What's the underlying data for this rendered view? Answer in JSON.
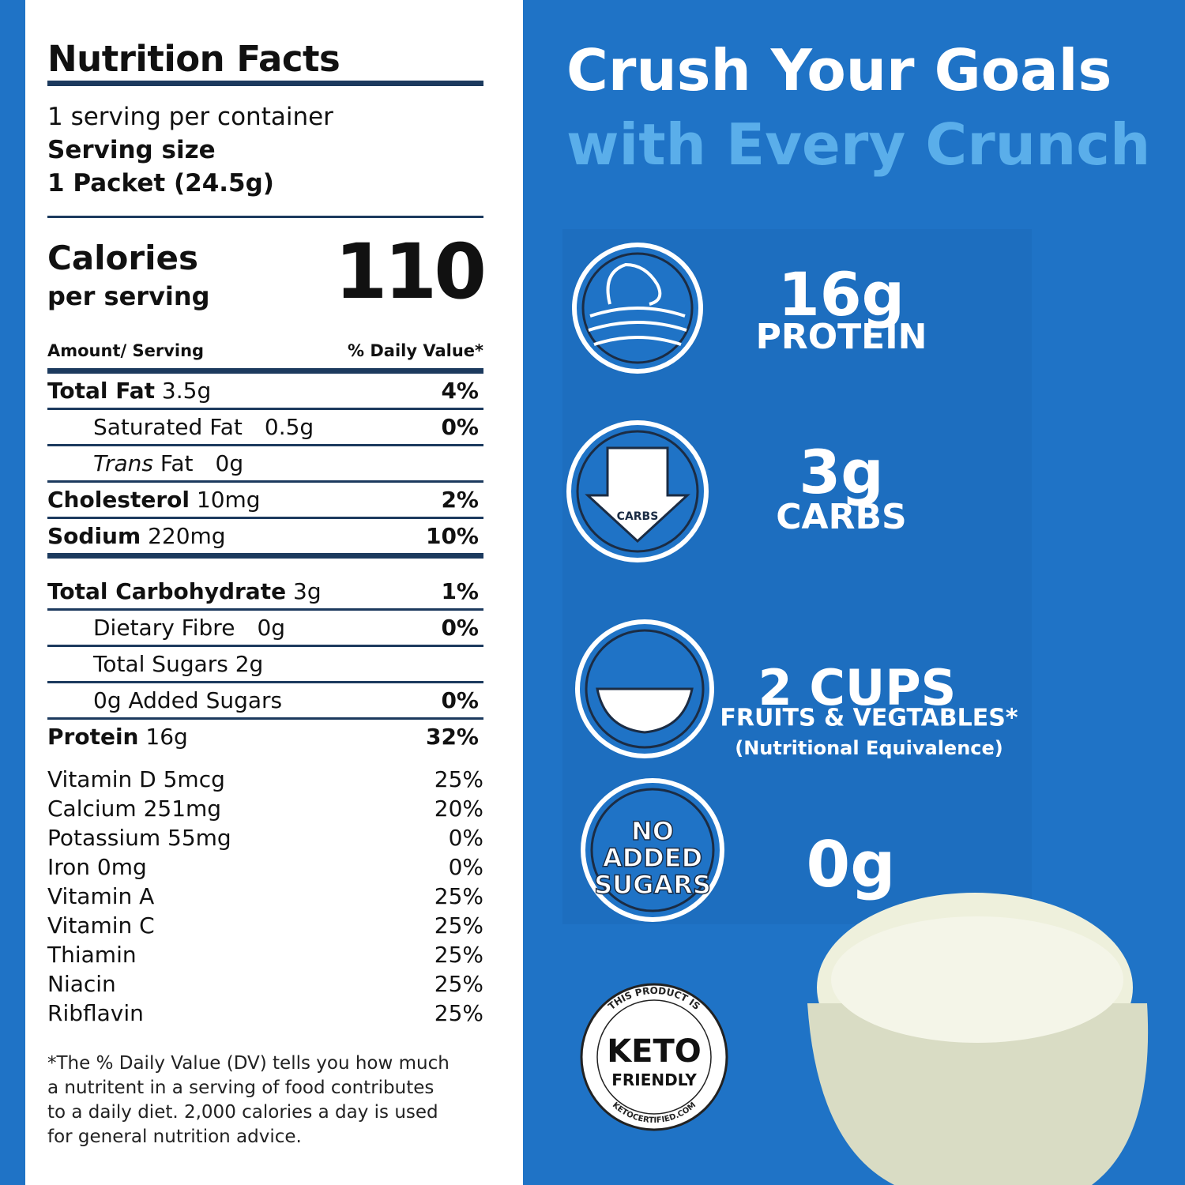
{
  "nutrition": {
    "title": "Nutrition Facts",
    "servings": "1 serving per container",
    "serving_size_label": "Serving size",
    "serving_size": "1 Packet (24.5g)",
    "calories_label": "Calories",
    "calories_sub": "per serving",
    "calories": "110",
    "amount_header": "Amount/ Serving",
    "dv_header": "% Daily Value*",
    "groups": [
      [
        {
          "name": "Total Fat",
          "amount": "3.5g",
          "dv": "4%",
          "bold": true
        },
        {
          "name": "Saturated Fat",
          "amount": "0.5g",
          "dv": "0%",
          "indent": true
        },
        {
          "italic": "Trans",
          "name": "Fat",
          "amount": "0g",
          "indent": true
        },
        {
          "name": "Cholesterol",
          "amount": "10mg",
          "dv": "2%",
          "bold": true
        },
        {
          "name": "Sodium",
          "amount": "220mg",
          "dv": "10%",
          "bold": true
        }
      ],
      [
        {
          "name": "Total Carbohydrate",
          "amount": "3g",
          "dv": "1%",
          "bold": true
        },
        {
          "name": "Dietary Fibre",
          "amount": "0g",
          "dv": "0%",
          "indent": true
        },
        {
          "name": "Total Sugars 2g",
          "indent": true
        },
        {
          "name": "0g Added Sugars",
          "dv": "0%",
          "indent": true
        },
        {
          "name": "Protein",
          "amount": "16g",
          "dv": "32%",
          "bold": true
        }
      ]
    ],
    "vitamins": [
      {
        "name": "Vitamin D 5mcg",
        "dv": "25%"
      },
      {
        "name": "Calcium 251mg",
        "dv": "20%"
      },
      {
        "name": "Potassium 55mg",
        "dv": "0%"
      },
      {
        "name": "Iron 0mg",
        "dv": "0%"
      },
      {
        "name": "Vitamin A",
        "dv": "25%"
      },
      {
        "name": "Vitamin C",
        "dv": "25%"
      },
      {
        "name": "Thiamin",
        "dv": "25%"
      },
      {
        "name": "Niacin",
        "dv": "25%"
      },
      {
        "name": "Ribflavin",
        "dv": "25%"
      }
    ],
    "footnote": [
      "*The % Daily Value (DV) tells you how much",
      "a nutritent in a serving of food contributes",
      "to a daily diet. 2,000 calories a day is used",
      "for general nutrition advice."
    ]
  },
  "headline": {
    "line1": "Crush Your Goals",
    "line2": "with Every Crunch"
  },
  "claims": [
    {
      "value": "16g",
      "label": "PROTEIN"
    },
    {
      "value": "3g",
      "label": "CARBS",
      "icon_text": [
        "CARBS"
      ]
    },
    {
      "value": "2 CUPS",
      "label": "FRUITS & VEGTABLES*",
      "note": "(Nutritional Equivalence)"
    },
    {
      "value": "0g",
      "icon_text": [
        "NO",
        "ADDED",
        "SUGARS"
      ]
    }
  ],
  "badge": {
    "top": "THIS PRODUCT IS",
    "title": "KETO",
    "sub": "FRIENDLY",
    "bottom": "KETOCERTIFIED.COM"
  }
}
